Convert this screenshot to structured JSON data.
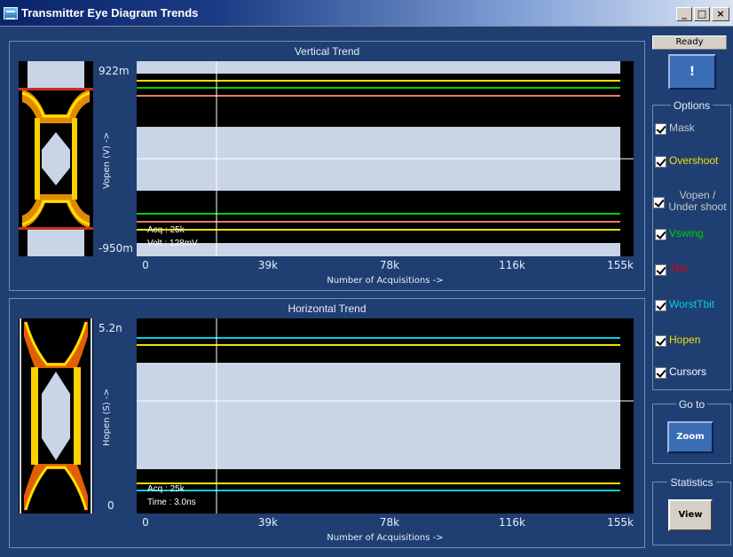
{
  "window": {
    "title": "Transmitter Eye Diagram Trends",
    "minimize": "_",
    "restore": "□",
    "close": "×"
  },
  "status": "Ready",
  "alert_button": "!",
  "vertical": {
    "title": "Vertical Trend",
    "y_max": "922m",
    "y_min": "-950m",
    "y_axis_title": "Vopen (V) ->",
    "x_ticks": [
      "0",
      "39k",
      "78k",
      "116k",
      "155k"
    ],
    "x_axis_title": "Number of Acquisitions ->",
    "cursor_acq": "Acq : 25k",
    "cursor_value": "Volt : 128mV"
  },
  "horizontal": {
    "title": "Horizontal Trend",
    "y_max": "5.2n",
    "y_min": "0",
    "y_axis_title": "Hopen (S) ->",
    "x_ticks": [
      "0",
      "39k",
      "78k",
      "116k",
      "155k"
    ],
    "x_axis_title": "Number of Acquisitions ->",
    "cursor_acq": "Acq : 25k",
    "cursor_value": "Time : 3.0ns"
  },
  "options": {
    "title": "Options",
    "items": [
      {
        "label": "Mask",
        "checked": true,
        "color": "#c8c8c8"
      },
      {
        "label": "Overshoot",
        "checked": true,
        "color": "#f0e000"
      },
      {
        "label": "Vopen / Under shoot",
        "checked": true,
        "color": "#c8c8c8"
      },
      {
        "label": "Vswing",
        "checked": true,
        "color": "#00d000"
      },
      {
        "label": "Tbit",
        "checked": true,
        "color": "#e00000"
      },
      {
        "label": "WorstTbit",
        "checked": true,
        "color": "#00d0e0"
      },
      {
        "label": "Hopen",
        "checked": true,
        "color": "#f0e000"
      },
      {
        "label": "Cursors",
        "checked": true,
        "color": "#ffffff"
      }
    ]
  },
  "goto": {
    "title": "Go to",
    "zoom_button": "Zoom"
  },
  "statistics": {
    "title": "Statistics",
    "view_button": "View"
  }
}
